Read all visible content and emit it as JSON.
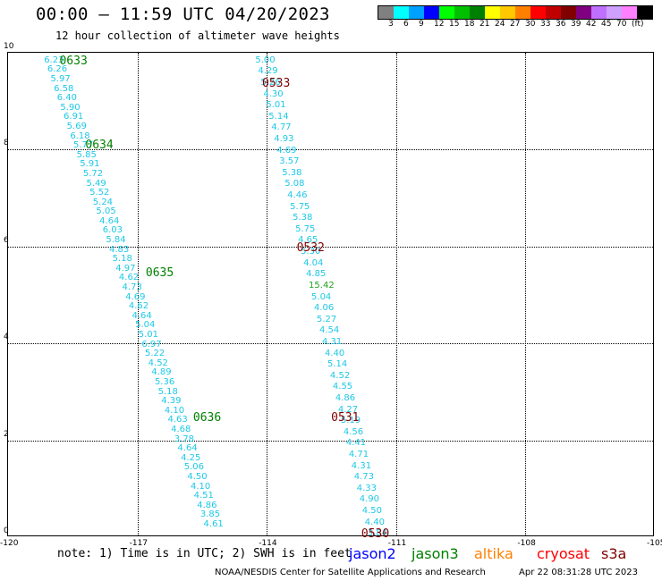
{
  "header": {
    "title": "00:00 – 11:59 UTC 04/20/2023",
    "subtitle": "12 hour collection of altimeter wave heights"
  },
  "legend": {
    "colors": [
      "#808080",
      "#00ffff",
      "#00a0ff",
      "#0000ff",
      "#00ff00",
      "#00c000",
      "#008000",
      "#ffff00",
      "#ffc800",
      "#ff8000",
      "#ff0000",
      "#c00000",
      "#800000",
      "#800080",
      "#c070ff",
      "#d0a0ff",
      "#ff80ff",
      "#000000"
    ],
    "labels": [
      "3",
      "6",
      "9",
      "12",
      "15",
      "18",
      "21",
      "24",
      "27",
      "30",
      "33",
      "36",
      "39",
      "42",
      "45",
      "70",
      "(ft)"
    ]
  },
  "axes": {
    "x_ticks": [
      "-120",
      "-117",
      "-114",
      "-111",
      "-108",
      "-105"
    ],
    "y_ticks": [
      "0",
      "2",
      "4",
      "6",
      "8",
      "10"
    ]
  },
  "map_data": {
    "x_range": [
      -120,
      -105
    ],
    "y_range": [
      0,
      10
    ],
    "pass_labels": [
      {
        "text": "0633",
        "lon": -118.6,
        "lat": 9.82,
        "color": "#008000"
      },
      {
        "text": "0634",
        "lon": -118.0,
        "lat": 8.09,
        "color": "#008000"
      },
      {
        "text": "0635",
        "lon": -116.6,
        "lat": 5.44,
        "color": "#008000"
      },
      {
        "text": "0636",
        "lon": -115.5,
        "lat": 2.45,
        "color": "#008000"
      },
      {
        "text": "0533",
        "lon": -113.9,
        "lat": 9.36,
        "color": "#800000"
      },
      {
        "text": "0532",
        "lon": -113.1,
        "lat": 5.96,
        "color": "#800000"
      },
      {
        "text": "0531",
        "lon": -112.3,
        "lat": 2.45,
        "color": "#800000"
      },
      {
        "text": "0530",
        "lon": -111.6,
        "lat": 0.05,
        "color": "#800000"
      }
    ],
    "track_a": {
      "start_lon": -119.0,
      "start_lat": 9.82,
      "end_lon": -115.3,
      "end_lat": 0.24,
      "values": [
        "6.23",
        "6.26",
        "5.97",
        "6.58",
        "6.40",
        "5.90",
        "6.91",
        "5.69",
        "6.18",
        "5.77",
        "5.85",
        "5.91",
        "5.72",
        "5.49",
        "5.52",
        "5.24",
        "5.05",
        "4.64",
        "6.03",
        "5.84",
        "4.83",
        "5.18",
        "4.97",
        "4.62",
        "4.73",
        "4.69",
        "4.62",
        "4.64",
        "5.04",
        "5.01",
        "6.97",
        "5.22",
        "4.52",
        "4.89",
        "5.36",
        "5.18",
        "4.39",
        "4.10",
        "4.63",
        "4.68",
        "3.78",
        "4.64",
        "4.25",
        "5.06",
        "4.50",
        "4.10",
        "4.51",
        "4.86",
        "3.85",
        "4.61"
      ]
    },
    "track_b": {
      "start_lon": -114.1,
      "start_lat": 9.82,
      "end_lon": -111.5,
      "end_lat": 0.05,
      "values": [
        "5.00",
        "4.29",
        "5.26",
        "4.30",
        "5.01",
        "5.14",
        "4.77",
        "4.93",
        "4.69",
        "3.57",
        "5.38",
        "5.08",
        "4.46",
        "5.75",
        "5.38",
        "5.75",
        "4.65",
        "5.30",
        "4.04",
        "4.85",
        "15.42",
        "5.04",
        "4.06",
        "5.27",
        "4.54",
        "4.31",
        "4.40",
        "5.14",
        "4.52",
        "4.55",
        "4.86",
        "4.27",
        "5.19",
        "4.56",
        "4.41",
        "4.71",
        "4.31",
        "4.73",
        "4.33",
        "4.90",
        "4.50",
        "4.40",
        "3.84"
      ],
      "highlight_index": 20,
      "highlight_color": "#22a020"
    }
  },
  "footer": {
    "note": "note: 1) Time is in UTC; 2) SWH is in feet",
    "satellites": [
      {
        "name": "jason2",
        "color": "#0000ff"
      },
      {
        "name": "jason3",
        "color": "#008000"
      },
      {
        "name": "altika",
        "color": "#ff8000"
      },
      {
        "name": "cryosat",
        "color": "#ff0000"
      },
      {
        "name": "s3a",
        "color": "#800000"
      }
    ],
    "credit": "NOAA/NESDIS Center for Satellite Applications and Research",
    "timestamp": "Apr 22 08:31:28 UTC 2023"
  }
}
